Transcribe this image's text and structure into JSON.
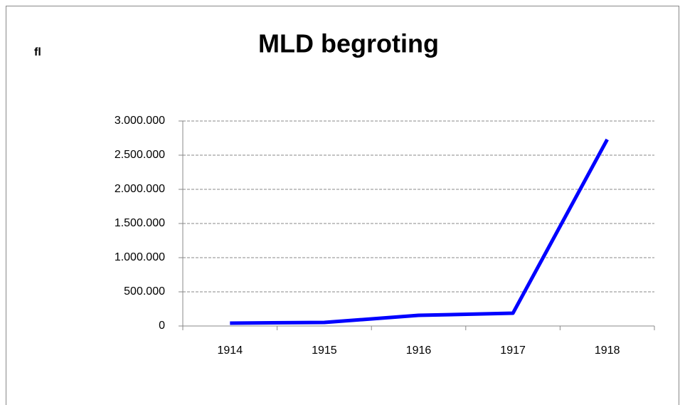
{
  "chart_data": {
    "type": "line",
    "title": "MLD begroting",
    "y_label": "fl",
    "categories": [
      "1914",
      "1915",
      "1916",
      "1917",
      "1918"
    ],
    "series": [
      {
        "name": "MLD begroting",
        "color": "#0000ff",
        "values": [
          42000,
          52000,
          156000,
          187000,
          2730000
        ]
      }
    ],
    "ylim": [
      0,
      3000000
    ],
    "yticks": [
      0,
      {
        "value": 500000,
        "label": "500.000"
      },
      {
        "value": 1000000,
        "label": "1.000.000"
      },
      {
        "value": 1500000,
        "label": "1.500.000"
      },
      {
        "value": 2000000,
        "label": "2.000.000"
      },
      {
        "value": 2500000,
        "label": "2.500.000"
      },
      {
        "value": 3000000,
        "label": "3.000.000"
      }
    ],
    "grid": true
  }
}
